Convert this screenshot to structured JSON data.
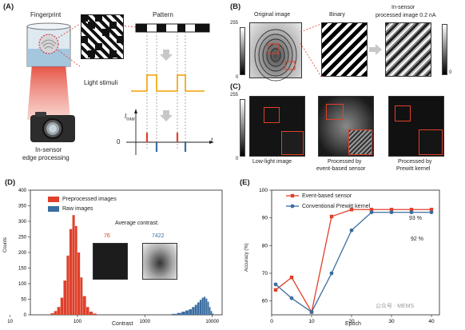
{
  "panelA": {
    "label": "(A)",
    "fingerprint": "Fingerprint",
    "pattern": "Pattern",
    "light_stimuli": "Light stimuli",
    "itotal_main": "I",
    "itotal_sub": "total",
    "zero": "0",
    "t": "t",
    "camera_line1": "In-sensor",
    "camera_line2": "edge processing"
  },
  "panelB": {
    "label": "(B)",
    "original": "Original image",
    "binary": "Binary",
    "processed_line1": "In-sensor",
    "processed_line2": "processed image 0.2 nA",
    "cbar_top": "255",
    "cbar_bottom": "0",
    "right_zero": "0"
  },
  "panelC": {
    "label": "(C)",
    "cbar_top": "255",
    "cbar_bottom": "0",
    "low_light": "Low-light image",
    "event_line1": "Processed by",
    "event_line2": "event-based sensor",
    "prewitt_line1": "Processed by",
    "prewitt_line2": "Prewitt kernel"
  },
  "panelD": {
    "label": "(D)",
    "legend_pre": "Preprocessed images",
    "legend_raw": "Raw images",
    "avg_contrast": "Average contrast:",
    "val_pre": "76",
    "val_raw": "7422",
    "xlabel": "Contrast",
    "ylabel": "Counts",
    "colors": {
      "pre": "#e0402a",
      "raw": "#3a6da0"
    }
  },
  "panelE": {
    "label": "(E)",
    "legend_event": "Event-based sensor",
    "legend_prewitt": "Conventional Prewitt kernel",
    "ann_93": "93 %",
    "ann_92": "92 %",
    "xlabel": "Epoch",
    "ylabel": "Accuracy (%)",
    "colors": {
      "event": "#e0402a",
      "prewitt": "#3a6da0"
    }
  },
  "watermark": "公众号 · MEMS",
  "chart_data": [
    {
      "type": "bar",
      "title": "",
      "xlabel": "Contrast",
      "ylabel": "Counts",
      "xscale": "log",
      "xticks": [
        10,
        100,
        1000,
        10000
      ],
      "ylim": [
        0,
        400
      ],
      "yticks": [
        0,
        50,
        100,
        150,
        200,
        250,
        300,
        350,
        400
      ],
      "series": [
        {
          "name": "Preprocessed images",
          "mean": 76,
          "x": [
            40,
            45,
            50,
            56,
            62,
            69,
            76,
            84,
            92,
            100,
            110,
            120,
            135,
            150,
            170
          ],
          "values": [
            5,
            12,
            25,
            55,
            110,
            190,
            275,
            320,
            285,
            200,
            120,
            60,
            25,
            10,
            4
          ]
        },
        {
          "name": "Raw images",
          "mean": 7422,
          "x": [
            2500,
            3000,
            3500,
            4000,
            4500,
            5000,
            5500,
            6000,
            6500,
            7000,
            7500,
            8000,
            8500,
            9000,
            9500,
            10000
          ],
          "values": [
            3,
            6,
            10,
            14,
            18,
            25,
            32,
            40,
            48,
            55,
            58,
            52,
            42,
            25,
            12,
            4
          ]
        }
      ],
      "legend_position": "top-left"
    },
    {
      "type": "line",
      "title": "",
      "xlabel": "Epoch",
      "ylabel": "Accuracy (%)",
      "xlim": [
        0,
        42
      ],
      "ylim": [
        55,
        100
      ],
      "xticks": [
        0,
        10,
        20,
        30,
        40
      ],
      "yticks": [
        60,
        70,
        80,
        90,
        100
      ],
      "series": [
        {
          "name": "Event-based sensor",
          "x": [
            1,
            5,
            10,
            15,
            20,
            25,
            30,
            35,
            40
          ],
          "y": [
            64,
            68.5,
            56,
            90.5,
            93,
            93,
            93,
            93,
            93
          ]
        },
        {
          "name": "Conventional Prewitt kernel",
          "x": [
            1,
            5,
            10,
            15,
            20,
            25,
            30,
            35,
            40
          ],
          "y": [
            66,
            61,
            56,
            70,
            85.5,
            92,
            92,
            92,
            92
          ]
        }
      ],
      "annotations": [
        "93 %",
        "92 %"
      ],
      "legend_position": "top"
    }
  ]
}
